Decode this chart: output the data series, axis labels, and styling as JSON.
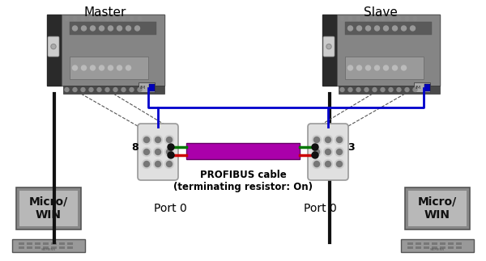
{
  "bg_color": "#ffffff",
  "master_label": "Master",
  "slave_label": "Slave",
  "port0_left_label": "Port 0",
  "port0_right_label": "Port 0",
  "micro_win_label": "Micro/\nWIN",
  "profibus_label": "PROFIBUS cable\n(terminating resistor: On)",
  "pin8_label": "8",
  "pin3_label": "3",
  "cable_color": "#aa00aa",
  "green_wire_color": "#007700",
  "red_wire_color": "#cc0000",
  "blue_wire_color": "#0000cc",
  "black_wire_color": "#111111",
  "text_color": "#000000",
  "label_fontsize": 10,
  "profibus_fontsize": 8.5
}
